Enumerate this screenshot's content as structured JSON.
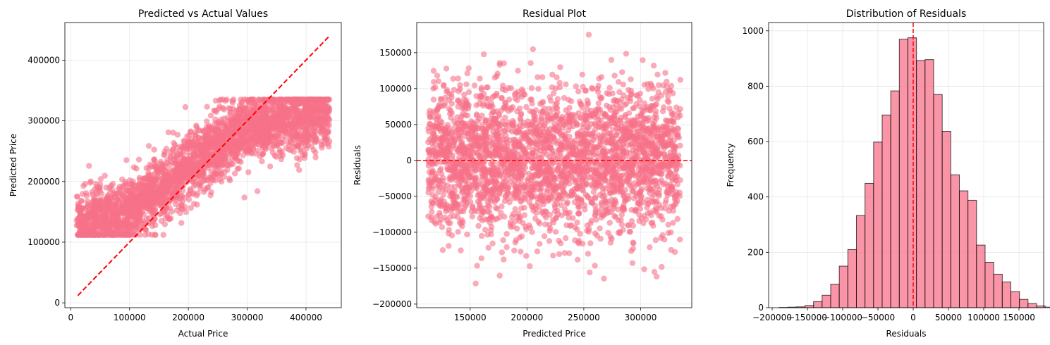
{
  "style": {
    "point_color": "#f77189",
    "bar_color": "#f77189",
    "reference_line_color": "#ff0000",
    "background": "#ffffff"
  },
  "chart_data": [
    {
      "type": "scatter",
      "title": "Predicted vs Actual Values",
      "xlabel": "Actual Price",
      "ylabel": "Predicted Price",
      "xlim": [
        -10000,
        460000
      ],
      "ylim": [
        -8000,
        462000
      ],
      "xticks": [
        0,
        100000,
        200000,
        300000,
        400000
      ],
      "yticks": [
        0,
        100000,
        200000,
        300000,
        400000
      ],
      "grid": true,
      "point_count": 10000,
      "point_alpha": 0.6,
      "point_cloud": {
        "x_range": [
          10000,
          440000
        ],
        "predicted_floor": 112000,
        "predicted_ceiling": 335000,
        "trend": [
          [
            10000,
            128000
          ],
          [
            100000,
            150000
          ],
          [
            200000,
            225000
          ],
          [
            300000,
            290000
          ],
          [
            440000,
            315000
          ]
        ],
        "noise_sd": 45000
      },
      "reference_line": {
        "x": [
          12000,
          440000
        ],
        "y": [
          12000,
          440000
        ],
        "style": "dashed"
      }
    },
    {
      "type": "scatter",
      "title": "Residual Plot",
      "xlabel": "Predicted Price",
      "ylabel": "Residuals",
      "xlim": [
        103000,
        345000
      ],
      "ylim": [
        -205000,
        192000
      ],
      "xticks": [
        150000,
        200000,
        250000,
        300000
      ],
      "yticks": [
        -200000,
        -150000,
        -100000,
        -50000,
        0,
        50000,
        100000,
        150000
      ],
      "grid": true,
      "point_count": 10000,
      "point_alpha": 0.6,
      "point_cloud": {
        "x_range": [
          113000,
          335000
        ],
        "residual_mean": 0,
        "residual_sd": 50000,
        "residual_range": [
          -190000,
          175000
        ]
      },
      "reference_line": {
        "y": 0,
        "style": "dashed"
      }
    },
    {
      "type": "bar",
      "subtype": "histogram",
      "title": "Distribution of Residuals",
      "xlabel": "Residuals",
      "ylabel": "Frequency",
      "xlim": [
        -205000,
        185000
      ],
      "ylim": [
        0,
        1030
      ],
      "xticks": [
        -200000,
        -150000,
        -100000,
        -50000,
        0,
        50000,
        100000,
        150000
      ],
      "yticks": [
        0,
        200,
        400,
        600,
        800,
        1000
      ],
      "grid": true,
      "bins": {
        "start": -190000,
        "width": 12166,
        "counts": [
          1,
          2,
          3,
          8,
          22,
          45,
          85,
          150,
          210,
          333,
          449,
          598,
          696,
          783,
          970,
          975,
          893,
          896,
          770,
          637,
          480,
          422,
          388,
          226,
          164,
          121,
          93,
          58,
          30,
          15,
          6,
          2
        ]
      },
      "reference_line": {
        "x": 0,
        "style": "dashed"
      }
    }
  ]
}
